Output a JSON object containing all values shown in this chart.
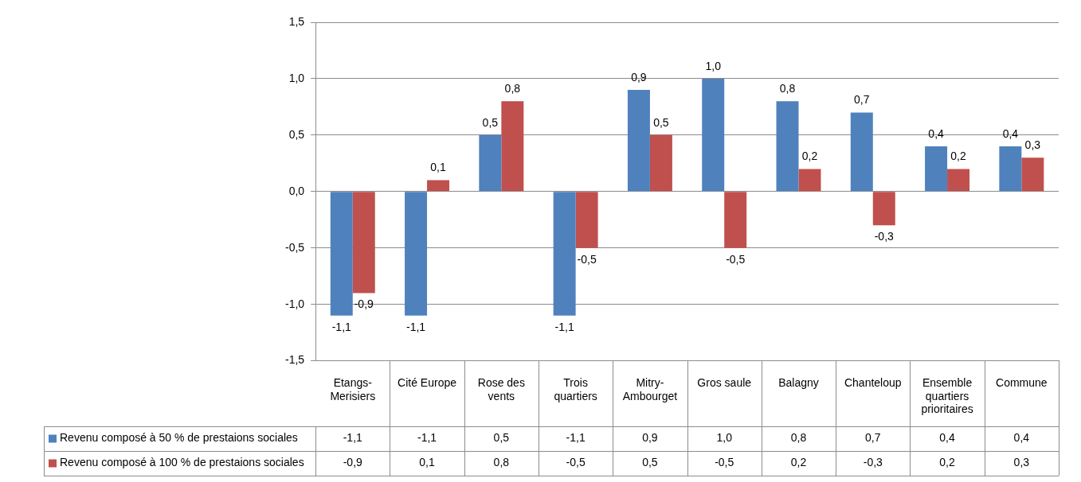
{
  "chart_data": {
    "type": "bar",
    "categories": [
      "Etangs-Merisiers",
      "Cité Europe",
      "Rose des vents",
      "Trois quartiers",
      "Mitry-Ambourget",
      "Gros saule",
      "Balagny",
      "Chanteloup",
      "Ensemble quartiers prioritaires",
      "Commune"
    ],
    "series": [
      {
        "name": "Revenu composé à 50 % de prestaions sociales",
        "color": "#4f81bd",
        "values": [
          -1.1,
          -1.1,
          0.5,
          -1.1,
          0.9,
          1.0,
          0.8,
          0.7,
          0.4,
          0.4
        ],
        "value_labels": [
          "-1,1",
          "-1,1",
          "0,5",
          "-1,1",
          "0,9",
          "1,0",
          "0,8",
          "0,7",
          "0,4",
          "0,4"
        ]
      },
      {
        "name": "Revenu composé à 100 % de prestaions sociales",
        "color": "#c0504d",
        "values": [
          -0.9,
          0.1,
          0.8,
          -0.5,
          0.5,
          -0.5,
          0.2,
          -0.3,
          0.2,
          0.3
        ],
        "value_labels": [
          "-0,9",
          "0,1",
          "0,8",
          "-0,5",
          "0,5",
          "-0,5",
          "0,2",
          "-0,3",
          "0,2",
          "0,3"
        ]
      }
    ],
    "ylim": [
      -1.5,
      1.5
    ],
    "yticks": [
      {
        "value": -1.5,
        "label": "-1,5"
      },
      {
        "value": -1.0,
        "label": "-1,0"
      },
      {
        "value": -0.5,
        "label": "-0,5"
      },
      {
        "value": 0,
        "label": "0,0"
      },
      {
        "value": 0.5,
        "label": "0,5"
      },
      {
        "value": 1.0,
        "label": "1,0"
      },
      {
        "value": 1.5,
        "label": "1,5"
      }
    ],
    "grid": "y",
    "legend": "bottom left"
  }
}
